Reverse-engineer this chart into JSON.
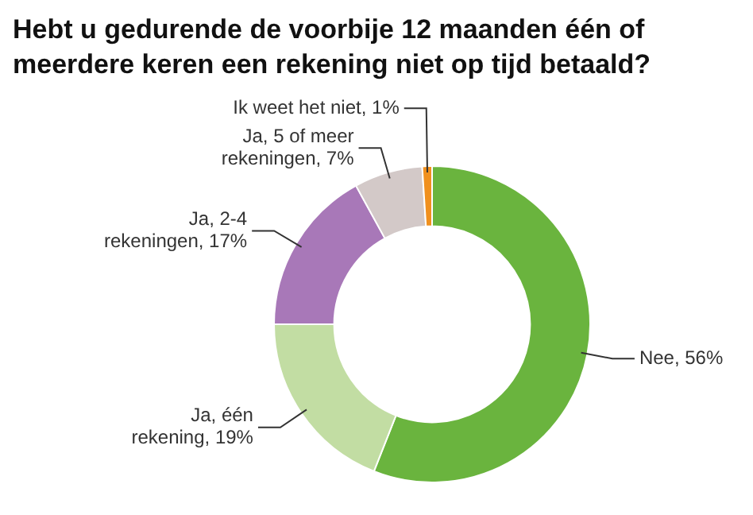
{
  "chart_data": {
    "type": "donut",
    "title": "Hebt u gedurende de voorbije 12 maanden één of meerdere keren een rekening niet op tijd betaald?",
    "categories": [
      "Nee",
      "Ja, één rekening",
      "Ja, 2-4 rekeningen",
      "Ja, 5 of meer rekeningen",
      "Ik weet het niet"
    ],
    "values": [
      56,
      19,
      17,
      7,
      1
    ],
    "value_labels": [
      "56%",
      "19%",
      "17%",
      "7%",
      "1%"
    ],
    "colors": [
      "#6ab43e",
      "#c2dda3",
      "#a878b8",
      "#d3c9c8",
      "#f0901e"
    ],
    "legend": false
  }
}
